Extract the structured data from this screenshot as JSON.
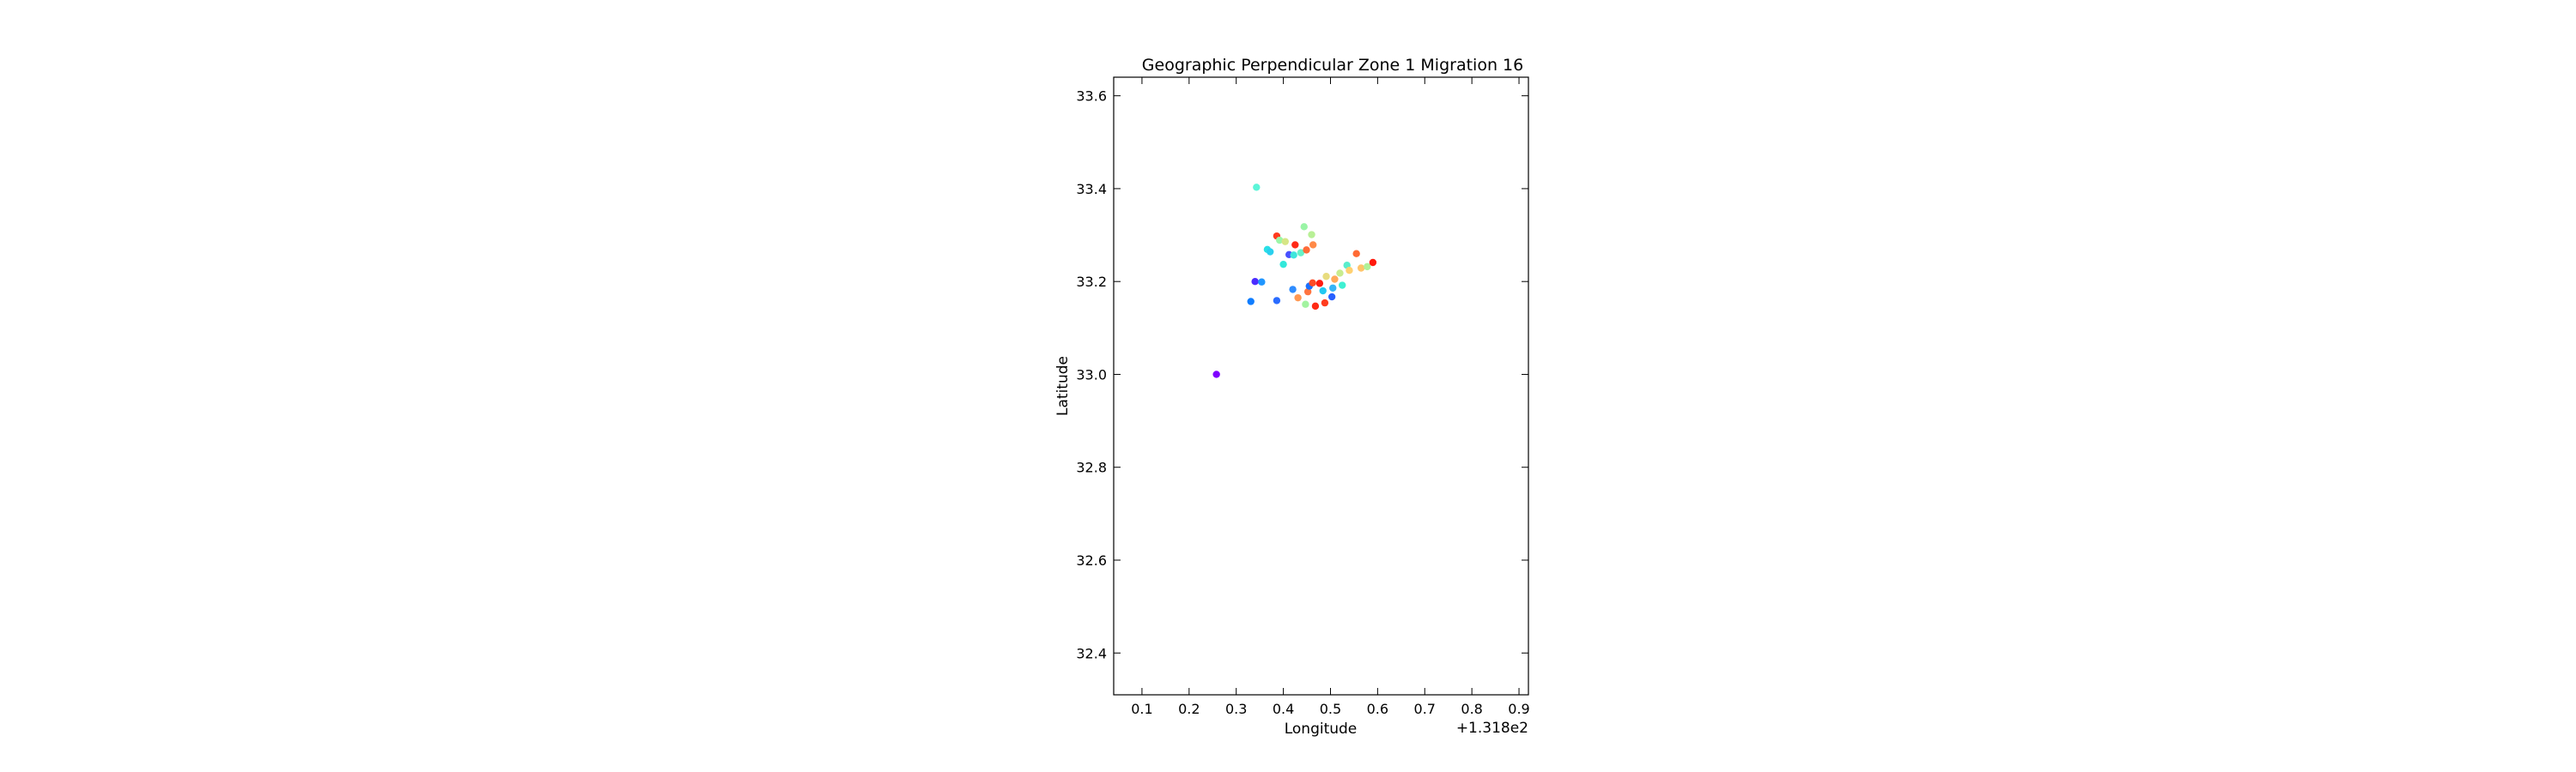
{
  "chart_data": {
    "type": "scatter",
    "title": "Geographic Perpendicular Zone 1 Migration 16",
    "xlabel": "Longitude",
    "ylabel": "Latitude",
    "x_offset_label": "+1.318e2",
    "xlim": [
      0.04,
      0.92
    ],
    "ylim": [
      32.31,
      33.64
    ],
    "xticks": [
      0.1,
      0.2,
      0.3,
      0.4,
      0.5,
      0.6,
      0.7,
      0.8,
      0.9
    ],
    "xtick_labels": [
      "0.1",
      "0.2",
      "0.3",
      "0.4",
      "0.5",
      "0.6",
      "0.7",
      "0.8",
      "0.9"
    ],
    "yticks": [
      32.4,
      32.6,
      32.8,
      33.0,
      33.2,
      33.4,
      33.6
    ],
    "ytick_labels": [
      "32.4",
      "32.6",
      "32.8",
      "33.0",
      "33.2",
      "33.4",
      "33.6"
    ],
    "grid": false,
    "colormap": "rainbow",
    "points": [
      {
        "x": 0.258,
        "y": 33.0,
        "color": "#7f00ff"
      },
      {
        "x": 0.34,
        "y": 33.2,
        "color": "#4b2cff"
      },
      {
        "x": 0.354,
        "y": 33.199,
        "color": "#1f96ff"
      },
      {
        "x": 0.331,
        "y": 33.157,
        "color": "#0f7dff"
      },
      {
        "x": 0.386,
        "y": 33.159,
        "color": "#2a6cff"
      },
      {
        "x": 0.343,
        "y": 33.403,
        "color": "#5cf5d8"
      },
      {
        "x": 0.366,
        "y": 33.269,
        "color": "#2ae0e6"
      },
      {
        "x": 0.372,
        "y": 33.264,
        "color": "#2ad0ee"
      },
      {
        "x": 0.386,
        "y": 33.298,
        "color": "#ff3a1e"
      },
      {
        "x": 0.392,
        "y": 33.289,
        "color": "#9cf6a8"
      },
      {
        "x": 0.404,
        "y": 33.286,
        "color": "#d6e686"
      },
      {
        "x": 0.4,
        "y": 33.237,
        "color": "#32e8da"
      },
      {
        "x": 0.412,
        "y": 33.258,
        "color": "#4850ff"
      },
      {
        "x": 0.425,
        "y": 33.279,
        "color": "#ff2a18"
      },
      {
        "x": 0.422,
        "y": 33.257,
        "color": "#3ee6dc"
      },
      {
        "x": 0.437,
        "y": 33.262,
        "color": "#66f2c8"
      },
      {
        "x": 0.444,
        "y": 33.318,
        "color": "#9af4a6"
      },
      {
        "x": 0.449,
        "y": 33.268,
        "color": "#ff6b38"
      },
      {
        "x": 0.463,
        "y": 33.279,
        "color": "#ff8a48"
      },
      {
        "x": 0.46,
        "y": 33.301,
        "color": "#b8f096"
      },
      {
        "x": 0.42,
        "y": 33.183,
        "color": "#2e8cff"
      },
      {
        "x": 0.431,
        "y": 33.165,
        "color": "#ff9852"
      },
      {
        "x": 0.447,
        "y": 33.151,
        "color": "#a2f3a0"
      },
      {
        "x": 0.452,
        "y": 33.178,
        "color": "#ff7440"
      },
      {
        "x": 0.455,
        "y": 33.19,
        "color": "#1a70ff"
      },
      {
        "x": 0.462,
        "y": 33.197,
        "color": "#ff4a24"
      },
      {
        "x": 0.468,
        "y": 33.147,
        "color": "#ff2a14"
      },
      {
        "x": 0.477,
        "y": 33.196,
        "color": "#ff1c10"
      },
      {
        "x": 0.484,
        "y": 33.18,
        "color": "#22c8f2"
      },
      {
        "x": 0.491,
        "y": 33.211,
        "color": "#e8dc7e"
      },
      {
        "x": 0.488,
        "y": 33.154,
        "color": "#ff3c1e"
      },
      {
        "x": 0.503,
        "y": 33.167,
        "color": "#2860ff"
      },
      {
        "x": 0.505,
        "y": 33.186,
        "color": "#36b4f6"
      },
      {
        "x": 0.509,
        "y": 33.205,
        "color": "#ffa95a"
      },
      {
        "x": 0.52,
        "y": 33.218,
        "color": "#c8ec8e"
      },
      {
        "x": 0.525,
        "y": 33.192,
        "color": "#3ef0d2"
      },
      {
        "x": 0.535,
        "y": 33.235,
        "color": "#5aedcc"
      },
      {
        "x": 0.54,
        "y": 33.224,
        "color": "#ffd070"
      },
      {
        "x": 0.555,
        "y": 33.26,
        "color": "#ff6a34"
      },
      {
        "x": 0.565,
        "y": 33.229,
        "color": "#ffc46a"
      },
      {
        "x": 0.578,
        "y": 33.232,
        "color": "#b0f198"
      },
      {
        "x": 0.59,
        "y": 33.241,
        "color": "#ff1a0c"
      }
    ]
  }
}
